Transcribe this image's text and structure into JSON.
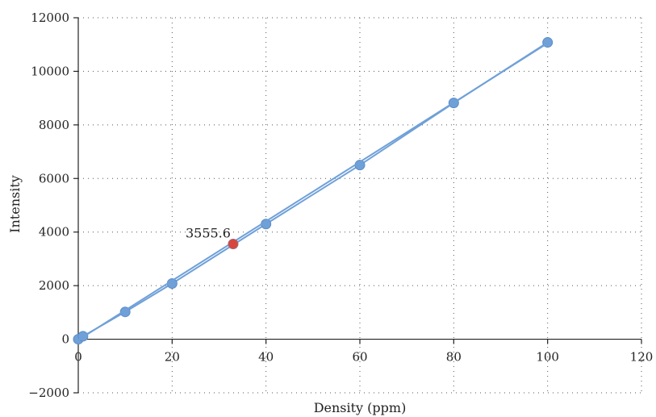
{
  "chart_data": {
    "type": "scatter",
    "xlabel": "Density (ppm)",
    "ylabel": "Intensity",
    "xlim": [
      0,
      120
    ],
    "ylim": [
      -2000,
      12000
    ],
    "x_ticks": [
      0,
      20,
      40,
      60,
      80,
      100,
      120
    ],
    "y_ticks": [
      -2000,
      0,
      2000,
      4000,
      6000,
      8000,
      10000,
      12000
    ],
    "grid": true,
    "series": [
      {
        "color": "#6fa0d8",
        "x": [
          0,
          1,
          10,
          20,
          40,
          60,
          80,
          100
        ],
        "y": [
          0,
          110,
          1020,
          2080,
          4300,
          6500,
          8820,
          11080
        ],
        "line": "connected"
      },
      {
        "color": "#6fa0d8",
        "type": "trendline",
        "x": [
          0,
          100
        ],
        "y": [
          -30,
          11050
        ]
      },
      {
        "color": "#d9453d",
        "x": [
          33
        ],
        "y": [
          3555.6
        ],
        "label": "3555.6"
      }
    ]
  }
}
